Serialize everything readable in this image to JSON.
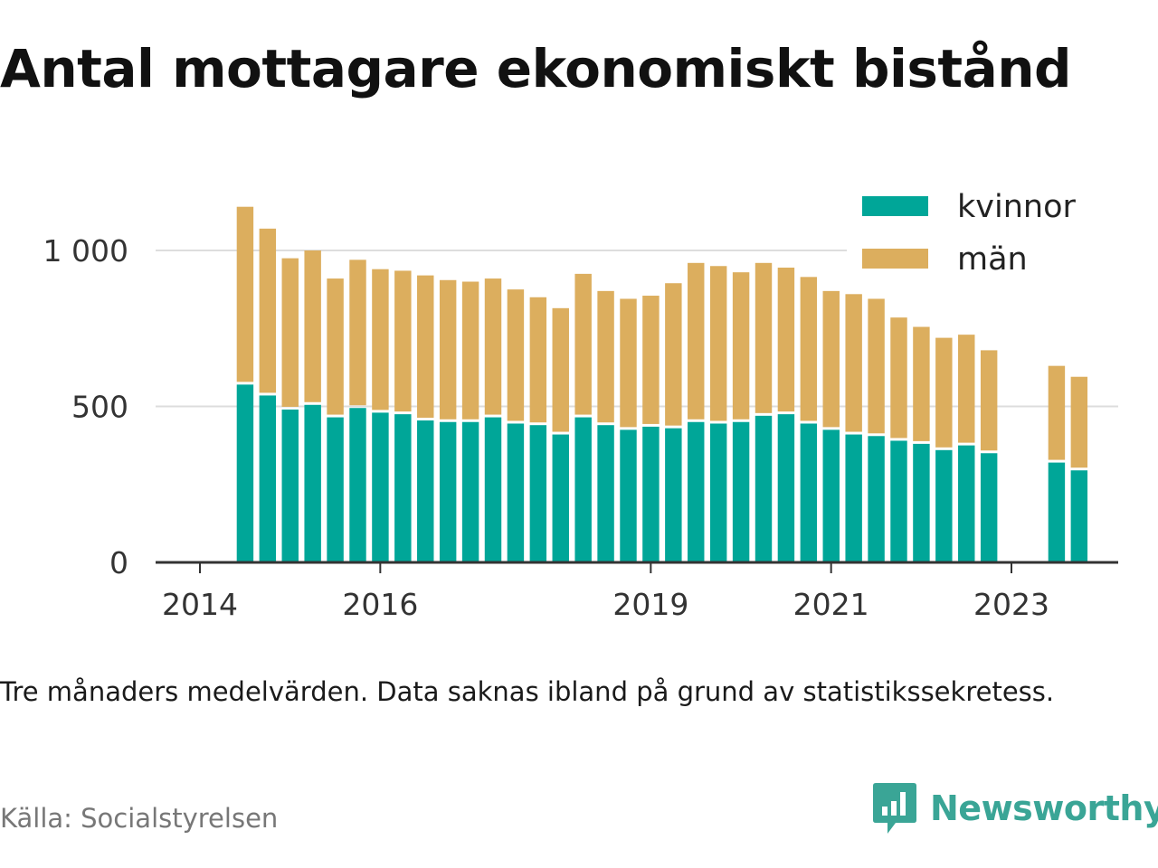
{
  "title": "Antal mottagare ekonomiskt bistånd",
  "note": "Tre månaders medelvärden. Data saknas ibland på grund av statistikssekretess.",
  "source": "Källa: Socialstyrelsen",
  "brand": {
    "name": "Newsworthy",
    "color": "#3aa596",
    "icon": "speech-bubble-chart-icon"
  },
  "colors": {
    "kvinnor": "#00a698",
    "man": "#dcae5e",
    "grid": "#dddddd",
    "axis": "#333333"
  },
  "chart_data": {
    "type": "bar",
    "stacked": true,
    "x": [
      "2014-04",
      "2014-07",
      "2014-10",
      "2015-01",
      "2015-04",
      "2015-07",
      "2015-10",
      "2016-01",
      "2016-04",
      "2016-07",
      "2016-10",
      "2017-01",
      "2017-04",
      "2017-07",
      "2017-10",
      "2018-01",
      "2018-04",
      "2018-07",
      "2018-10",
      "2019-01",
      "2019-04",
      "2019-07",
      "2019-10",
      "2020-01",
      "2020-04",
      "2020-07",
      "2020-10",
      "2021-01",
      "2021-04",
      "2021-07",
      "2021-10",
      "2022-01",
      "2022-04",
      "2022-07",
      "2022-10",
      "2023-01",
      "2023-04",
      "2023-07"
    ],
    "series": [
      {
        "name": "kvinnor",
        "values": [
          570,
          535,
          490,
          505,
          465,
          495,
          480,
          475,
          455,
          450,
          450,
          465,
          445,
          440,
          410,
          465,
          440,
          425,
          435,
          430,
          450,
          445,
          450,
          470,
          475,
          445,
          425,
          410,
          405,
          390,
          380,
          360,
          375,
          350,
          null,
          null,
          320,
          295
        ]
      },
      {
        "name": "män",
        "values": [
          570,
          535,
          485,
          495,
          445,
          475,
          460,
          460,
          465,
          455,
          450,
          445,
          430,
          410,
          405,
          460,
          430,
          420,
          420,
          465,
          510,
          505,
          480,
          490,
          470,
          470,
          445,
          450,
          440,
          395,
          375,
          360,
          355,
          330,
          null,
          null,
          310,
          300
        ]
      }
    ],
    "x_ticks": [
      "2014",
      "2016",
      "2019",
      "2021",
      "2023"
    ],
    "y_ticks": [
      0,
      500,
      1000
    ],
    "y_tick_labels": [
      "0",
      "500",
      "1 000"
    ],
    "ylim": [
      0,
      1200
    ],
    "xlim": [
      "2014-01",
      "2024-01"
    ],
    "grid": "horizontal",
    "legend": {
      "position": "top-right",
      "entries": [
        "kvinnor",
        "män"
      ]
    }
  }
}
